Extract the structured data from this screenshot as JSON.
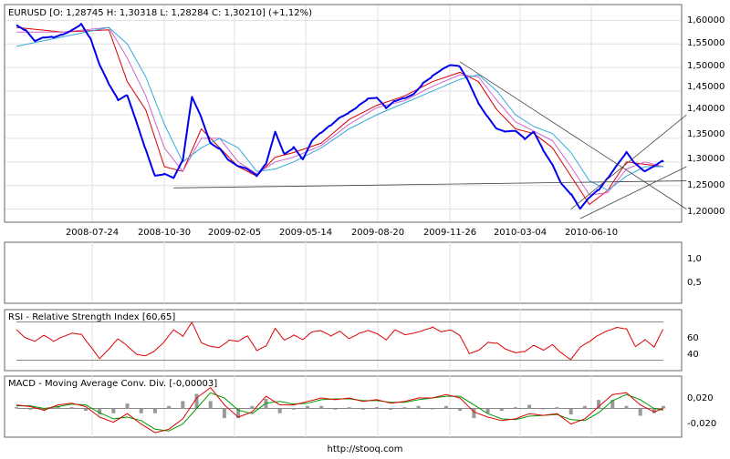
{
  "footer": "http://stooq.com",
  "colors": {
    "price": "#0000ee",
    "ma_fast": "#dd0000",
    "ma_mid": "#cc66cc",
    "ma_slow": "#33aadd",
    "trendline": "#444444",
    "rsi": "#dd0000",
    "macd_line": "#dd0000",
    "macd_signal": "#009900",
    "histogram": "#999999",
    "grid": "#e0e0e0",
    "frame": "#666666"
  },
  "chart_data": [
    {
      "type": "line",
      "title": "EURUSD [O: 1,28745  H: 1,30318  L: 1,28284  C: 1,30210] (+1,12%)",
      "x_tick_labels": [
        "2008-07-24",
        "2008-10-30",
        "2009-02-05",
        "2009-05-14",
        "2009-08-20",
        "2009-11-26",
        "2010-03-04",
        "2010-06-10"
      ],
      "y_tick_labels": [
        "1,60000",
        "1,55000",
        "1,50000",
        "1,45000",
        "1,40000",
        "1,35000",
        "1,30000",
        "1,25000",
        "1,20000"
      ],
      "ylim": [
        1.18,
        1.62
      ],
      "grid": true,
      "series": [
        {
          "role": "price",
          "x": [
            0,
            2,
            4,
            6,
            8,
            10,
            12,
            14,
            16,
            18,
            20,
            22,
            24,
            26,
            28,
            30,
            32,
            34,
            36,
            38,
            40,
            42,
            44,
            46,
            48,
            50,
            52,
            54,
            56,
            58,
            60,
            62,
            64,
            66,
            68,
            70,
            72,
            74,
            76,
            78,
            80,
            82,
            84,
            86,
            88,
            90,
            92,
            94,
            96,
            98,
            100,
            102,
            104,
            106,
            108,
            110,
            112,
            114,
            116,
            118,
            120
          ],
          "values": [
            1.59,
            1.575,
            1.55,
            1.56,
            1.565,
            1.575,
            1.585,
            1.595,
            1.56,
            1.5,
            1.46,
            1.43,
            1.445,
            1.39,
            1.33,
            1.27,
            1.27,
            1.26,
            1.3,
            1.44,
            1.4,
            1.345,
            1.33,
            1.3,
            1.285,
            1.28,
            1.27,
            1.3,
            1.37,
            1.32,
            1.33,
            1.3,
            1.34,
            1.36,
            1.38,
            1.4,
            1.41,
            1.42,
            1.43,
            1.43,
            1.41,
            1.43,
            1.44,
            1.45,
            1.47,
            1.48,
            1.49,
            1.5,
            1.5,
            1.47,
            1.43,
            1.4,
            1.37,
            1.36,
            1.36,
            1.345,
            1.365,
            1.33,
            1.3,
            1.255,
            1.23
          ]
        },
        {
          "role": "price",
          "x": [
            120,
            122,
            124,
            126,
            128,
            130,
            132,
            134,
            136,
            138,
            140
          ],
          "values": [
            1.23,
            1.195,
            1.22,
            1.24,
            1.27,
            1.3,
            1.325,
            1.295,
            1.275,
            1.285,
            1.3
          ]
        },
        {
          "role": "ma_fast",
          "x": [
            0,
            10,
            20,
            24,
            28,
            32,
            36,
            40,
            44,
            48,
            52,
            56,
            60,
            66,
            72,
            78,
            84,
            90,
            96,
            100,
            104,
            108,
            112,
            116,
            120,
            124,
            128,
            132,
            136,
            140
          ],
          "values": [
            1.585,
            1.575,
            1.58,
            1.47,
            1.41,
            1.29,
            1.28,
            1.37,
            1.33,
            1.29,
            1.27,
            1.31,
            1.32,
            1.34,
            1.39,
            1.42,
            1.44,
            1.47,
            1.49,
            1.47,
            1.41,
            1.37,
            1.36,
            1.33,
            1.27,
            1.21,
            1.24,
            1.3,
            1.295,
            1.29
          ]
        },
        {
          "role": "ma_mid",
          "x": [
            0,
            10,
            20,
            24,
            28,
            32,
            36,
            40,
            44,
            48,
            52,
            56,
            60,
            66,
            72,
            78,
            84,
            90,
            96,
            100,
            104,
            108,
            112,
            116,
            120,
            124,
            128,
            132,
            136,
            140
          ],
          "values": [
            1.575,
            1.575,
            1.585,
            1.52,
            1.44,
            1.33,
            1.28,
            1.35,
            1.35,
            1.3,
            1.275,
            1.3,
            1.31,
            1.335,
            1.38,
            1.415,
            1.43,
            1.46,
            1.485,
            1.48,
            1.43,
            1.385,
            1.365,
            1.345,
            1.29,
            1.23,
            1.235,
            1.285,
            1.3,
            1.29
          ]
        },
        {
          "role": "ma_slow",
          "x": [
            0,
            10,
            20,
            24,
            28,
            32,
            36,
            40,
            44,
            48,
            52,
            56,
            60,
            66,
            72,
            78,
            84,
            90,
            96,
            100,
            104,
            108,
            112,
            116,
            120,
            124,
            128,
            132,
            136,
            140
          ],
          "values": [
            1.545,
            1.565,
            1.585,
            1.55,
            1.48,
            1.38,
            1.3,
            1.33,
            1.35,
            1.33,
            1.28,
            1.285,
            1.3,
            1.33,
            1.37,
            1.4,
            1.425,
            1.45,
            1.475,
            1.485,
            1.45,
            1.4,
            1.375,
            1.36,
            1.32,
            1.26,
            1.24,
            1.27,
            1.29,
            1.29
          ]
        }
      ],
      "trendlines": [
        {
          "from": [
            34,
            1.245
          ],
          "to": [
            145,
            1.26
          ]
        },
        {
          "from": [
            96,
            1.512
          ],
          "to": [
            145,
            1.2
          ]
        },
        {
          "from": [
            120,
            1.2
          ],
          "to": [
            145,
            1.4
          ]
        },
        {
          "from": [
            122,
            1.18
          ],
          "to": [
            145,
            1.29
          ]
        }
      ]
    },
    {
      "type": "line",
      "title": "",
      "y_tick_labels": [
        "1,0",
        "0,5"
      ],
      "ylim": [
        0,
        1.3
      ],
      "series": []
    },
    {
      "type": "line",
      "title": "RSI - Relative Strength Index [60,65]",
      "y_tick_labels": [
        "60",
        "40"
      ],
      "ylim": [
        22,
        78
      ],
      "reference_levels": [
        70,
        30
      ],
      "series": [
        {
          "role": "rsi",
          "x": [
            0,
            2,
            4,
            6,
            8,
            10,
            12,
            14,
            16,
            18,
            20,
            22,
            24,
            26,
            28,
            30,
            32,
            34,
            36,
            38,
            40,
            42,
            44,
            46,
            48,
            50,
            52,
            54,
            56,
            58,
            60,
            62,
            64,
            66,
            68,
            70,
            72,
            74,
            76,
            78,
            80,
            82,
            84,
            86,
            88,
            90,
            92,
            94,
            96,
            98,
            100,
            102,
            104,
            106,
            108,
            110,
            112,
            114,
            116,
            118,
            120,
            122,
            124,
            126,
            128,
            130,
            132,
            134,
            136,
            138,
            140
          ],
          "values": [
            62,
            52,
            48,
            55,
            50,
            56,
            60,
            58,
            44,
            30,
            40,
            52,
            46,
            38,
            36,
            40,
            48,
            60,
            54,
            70,
            50,
            46,
            44,
            50,
            48,
            54,
            40,
            46,
            65,
            52,
            56,
            50,
            58,
            60,
            56,
            62,
            54,
            58,
            60,
            56,
            50,
            62,
            58,
            60,
            62,
            64,
            58,
            60,
            55,
            38,
            42,
            50,
            48,
            40,
            36,
            38,
            46,
            42,
            48,
            38,
            30,
            42,
            48,
            56,
            62,
            66,
            64,
            44,
            50,
            42,
            62
          ]
        }
      ]
    },
    {
      "type": "line",
      "title": "MACD - Moving Average Conv. Div. [-0,00003]",
      "y_tick_labels": [
        "0,020",
        "-0,020"
      ],
      "ylim": [
        -0.03,
        0.032
      ],
      "series": [
        {
          "role": "macd_line",
          "x": [
            0,
            3,
            6,
            9,
            12,
            15,
            18,
            21,
            24,
            27,
            30,
            33,
            36,
            39,
            42,
            45,
            48,
            51,
            54,
            57,
            60,
            63,
            66,
            69,
            72,
            75,
            78,
            81,
            84,
            87,
            90,
            93,
            96,
            99,
            102,
            105,
            108,
            111,
            114,
            117,
            120,
            123,
            126,
            129,
            132,
            135,
            138,
            140
          ],
          "values": [
            0.004,
            0.002,
            -0.002,
            0.004,
            0.006,
            0.002,
            -0.01,
            -0.016,
            -0.006,
            -0.018,
            -0.028,
            -0.024,
            -0.012,
            0.012,
            0.024,
            0.004,
            -0.01,
            -0.004,
            0.014,
            0.004,
            0.004,
            0.008,
            0.012,
            0.01,
            0.012,
            0.008,
            0.01,
            0.006,
            0.008,
            0.012,
            0.012,
            0.016,
            0.012,
            -0.004,
            -0.01,
            -0.014,
            -0.012,
            -0.006,
            -0.008,
            -0.006,
            -0.018,
            -0.012,
            0.002,
            0.016,
            0.018,
            0.004,
            -0.004,
            0.0
          ]
        },
        {
          "role": "macd_signal",
          "x": [
            0,
            3,
            6,
            9,
            12,
            15,
            18,
            21,
            24,
            27,
            30,
            33,
            36,
            39,
            42,
            45,
            48,
            51,
            54,
            57,
            60,
            63,
            66,
            69,
            72,
            75,
            78,
            81,
            84,
            87,
            90,
            93,
            96,
            99,
            102,
            105,
            108,
            111,
            114,
            117,
            120,
            123,
            126,
            129,
            132,
            135,
            138,
            140
          ],
          "values": [
            0.003,
            0.003,
            0.0,
            0.002,
            0.005,
            0.004,
            -0.005,
            -0.012,
            -0.01,
            -0.014,
            -0.024,
            -0.026,
            -0.018,
            0.0,
            0.018,
            0.012,
            -0.002,
            -0.006,
            0.006,
            0.008,
            0.005,
            0.006,
            0.01,
            0.011,
            0.011,
            0.009,
            0.009,
            0.007,
            0.007,
            0.01,
            0.012,
            0.014,
            0.014,
            0.004,
            -0.006,
            -0.012,
            -0.013,
            -0.009,
            -0.008,
            -0.007,
            -0.013,
            -0.014,
            -0.005,
            0.009,
            0.016,
            0.01,
            0.0,
            -0.002
          ]
        }
      ]
    }
  ]
}
